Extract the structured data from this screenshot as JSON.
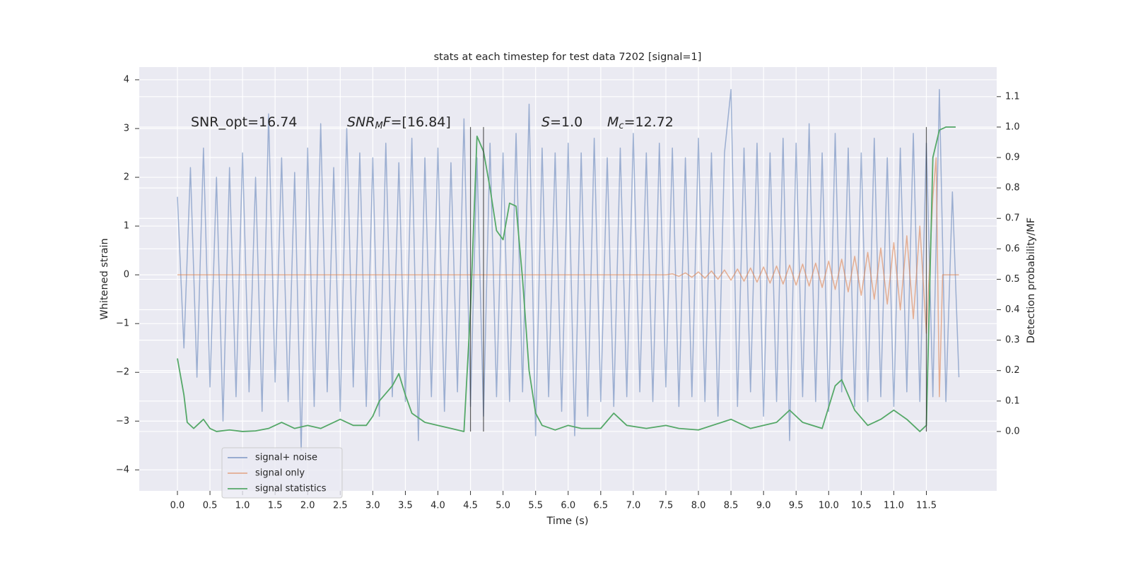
{
  "chart_data": {
    "type": "line",
    "title": "stats at each timestep for test data 7202 [signal=1]",
    "x_label": "Time (s)",
    "y_label": "Whitened strain",
    "y2_label": "Detection probability/MF",
    "xlim": [
      -0.586,
      12.58
    ],
    "ylim": [
      -4.43,
      4.26
    ],
    "y2lim": [
      -0.195,
      1.197
    ],
    "xticks": [
      {
        "value": 0,
        "label": "0.0"
      },
      0.5,
      {
        "value": 1,
        "label": "1.0"
      },
      1.5,
      {
        "value": 2,
        "label": "2.0"
      },
      2.5,
      {
        "value": 3,
        "label": "3.0"
      },
      3.5,
      {
        "value": 4,
        "label": "4.0"
      },
      4.5,
      {
        "value": 5,
        "label": "5.0"
      },
      5.5,
      {
        "value": 6,
        "label": "6.0"
      },
      6.5,
      {
        "value": 7,
        "label": "7.0"
      },
      7.5,
      {
        "value": 8,
        "label": "8.0"
      },
      8.5,
      {
        "value": 9,
        "label": "9.0"
      },
      9.5,
      {
        "value": 10,
        "label": "10.0"
      },
      10.5,
      {
        "value": 11,
        "label": "11.0"
      },
      11.5
    ],
    "yticks": [
      {
        "value": -4,
        "label": "−4"
      },
      {
        "value": -3,
        "label": "−3"
      },
      {
        "value": -2,
        "label": "−2"
      },
      {
        "value": -1,
        "label": "−1"
      },
      0,
      1,
      2,
      3,
      4
    ],
    "y2ticks": [
      {
        "value": 0,
        "label": "0.0"
      },
      0.1,
      0.2,
      0.3,
      0.4,
      0.5,
      0.6,
      0.7,
      0.8,
      0.9,
      {
        "value": 1,
        "label": "1.0"
      },
      1.1
    ],
    "grid": true,
    "legend": "lower left",
    "series": [
      {
        "name": "signal+ noise",
        "color": "#4c72b0",
        "x": [
          0,
          0.1,
          0.2,
          0.3,
          0.4,
          0.5,
          0.6,
          0.7,
          0.8,
          0.9,
          1,
          1.1,
          1.2,
          1.3,
          1.4,
          1.5,
          1.6,
          1.7,
          1.8,
          1.9,
          2,
          2.1,
          2.2,
          2.3,
          2.4,
          2.5,
          2.6,
          2.7,
          2.8,
          2.9,
          3,
          3.1,
          3.2,
          3.3,
          3.4,
          3.5,
          3.6,
          3.7,
          3.8,
          3.9,
          4,
          4.1,
          4.2,
          4.3,
          4.4,
          4.5,
          4.6,
          4.7,
          4.8,
          4.9,
          5,
          5.1,
          5.2,
          5.3,
          5.4,
          5.5,
          5.6,
          5.7,
          5.8,
          5.9,
          6,
          6.1,
          6.2,
          6.3,
          6.4,
          6.5,
          6.6,
          6.7,
          6.8,
          6.9,
          7,
          7.1,
          7.2,
          7.3,
          7.4,
          7.5,
          7.6,
          7.7,
          7.8,
          7.9,
          8,
          8.1,
          8.2,
          8.3,
          8.4,
          8.5,
          8.6,
          8.7,
          8.8,
          8.9,
          9,
          9.1,
          9.2,
          9.3,
          9.4,
          9.5,
          9.6,
          9.7,
          9.8,
          9.9,
          10,
          10.1,
          10.2,
          10.3,
          10.4,
          10.5,
          10.6,
          10.7,
          10.8,
          10.9,
          11,
          11.1,
          11.2,
          11.3,
          11.4,
          11.5,
          11.6,
          11.7,
          11.8,
          11.9,
          12
        ],
        "values": [
          1.6,
          -1.5,
          2.2,
          -2.1,
          2.6,
          -2.3,
          2.0,
          -3.0,
          2.2,
          -2.5,
          2.5,
          -2.4,
          2.0,
          -2.8,
          3.3,
          -2.2,
          2.4,
          -2.6,
          2.1,
          -3.6,
          2.6,
          -2.7,
          3.1,
          -2.4,
          2.2,
          -2.8,
          3.0,
          -2.3,
          2.5,
          -2.7,
          2.4,
          -2.9,
          2.7,
          -2.5,
          2.3,
          -2.6,
          2.8,
          -3.4,
          2.4,
          -2.5,
          2.6,
          -2.8,
          2.3,
          -2.4,
          3.2,
          -2.7,
          2.4,
          -2.9,
          2.7,
          -2.5,
          2.5,
          -2.6,
          2.9,
          -2.4,
          3.5,
          -3.3,
          2.6,
          -2.5,
          2.5,
          -2.8,
          2.7,
          -3.3,
          2.5,
          -2.9,
          2.8,
          -2.6,
          2.4,
          -2.7,
          2.6,
          -2.5,
          2.9,
          -2.4,
          2.5,
          -2.6,
          2.7,
          -2.3,
          2.6,
          -2.7,
          2.4,
          -2.5,
          2.8,
          -2.6,
          2.5,
          -2.9,
          2.5,
          3.8,
          -2.7,
          2.6,
          -2.4,
          2.7,
          -2.9,
          2.5,
          -2.6,
          2.8,
          -3.4,
          2.7,
          -2.5,
          3.1,
          -2.6,
          2.5,
          -2.8,
          2.9,
          -2.4,
          2.6,
          -2.7,
          2.5,
          -2.6,
          2.8,
          -2.5,
          2.4,
          -2.7,
          2.6,
          -2.4,
          2.9,
          -2.6,
          2.7,
          -2.5,
          3.8,
          -2.6,
          1.7,
          -2.1
        ]
      },
      {
        "name": "signal only",
        "color": "#dd8452",
        "x": [
          0,
          7.5,
          7.6,
          7.7,
          7.8,
          7.9,
          8,
          8.1,
          8.2,
          8.3,
          8.4,
          8.5,
          8.6,
          8.7,
          8.8,
          8.9,
          9,
          9.1,
          9.2,
          9.3,
          9.4,
          9.5,
          9.6,
          9.7,
          9.8,
          9.9,
          10,
          10.1,
          10.2,
          10.3,
          10.4,
          10.5,
          10.6,
          10.7,
          10.8,
          10.9,
          11,
          11.1,
          11.2,
          11.3,
          11.4,
          11.5,
          11.6,
          11.65,
          11.7,
          11.75,
          12
        ],
        "values": [
          0,
          0,
          0.02,
          -0.03,
          0.04,
          -0.05,
          0.06,
          -0.07,
          0.08,
          -0.09,
          0.1,
          -0.11,
          0.12,
          -0.13,
          0.14,
          -0.15,
          0.16,
          -0.17,
          0.18,
          -0.19,
          0.2,
          -0.21,
          0.22,
          -0.23,
          0.24,
          -0.26,
          0.28,
          -0.3,
          0.32,
          -0.35,
          0.38,
          -0.42,
          0.46,
          -0.5,
          0.55,
          -0.6,
          0.66,
          -0.72,
          0.8,
          -0.9,
          1.0,
          -1.2,
          1.6,
          2.4,
          -2.5,
          0,
          0
        ]
      },
      {
        "name": "signal statistics",
        "color": "#55a868",
        "axis": "y2",
        "x": [
          0,
          0.1,
          0.15,
          0.25,
          0.3,
          0.4,
          0.5,
          0.6,
          0.8,
          1,
          1.2,
          1.4,
          1.6,
          1.7,
          1.8,
          2,
          2.2,
          2.5,
          2.7,
          2.9,
          3,
          3.1,
          3.3,
          3.4,
          3.5,
          3.6,
          3.8,
          4,
          4.2,
          4.4,
          4.5,
          4.6,
          4.7,
          4.8,
          4.9,
          5,
          5.1,
          5.2,
          5.3,
          5.4,
          5.5,
          5.6,
          5.8,
          6,
          6.2,
          6.5,
          6.7,
          6.9,
          7.2,
          7.5,
          7.7,
          8,
          8.5,
          8.8,
          9.2,
          9.4,
          9.6,
          9.9,
          10.1,
          10.2,
          10.4,
          10.6,
          10.8,
          11,
          11.2,
          11.4,
          11.5,
          11.6,
          11.7,
          11.8,
          11.95
        ],
        "values": [
          0.24,
          0.12,
          0.03,
          0.01,
          0.02,
          0.04,
          0.01,
          0,
          0.005,
          0,
          0.002,
          0.01,
          0.03,
          0.02,
          0.01,
          0.02,
          0.01,
          0.04,
          0.02,
          0.02,
          0.05,
          0.1,
          0.15,
          0.19,
          0.12,
          0.06,
          0.03,
          0.02,
          0.01,
          0,
          0.4,
          0.97,
          0.92,
          0.8,
          0.66,
          0.63,
          0.75,
          0.74,
          0.5,
          0.2,
          0.06,
          0.02,
          0.005,
          0.02,
          0.01,
          0.01,
          0.06,
          0.02,
          0.01,
          0.02,
          0.01,
          0.005,
          0.04,
          0.01,
          0.03,
          0.07,
          0.03,
          0.01,
          0.15,
          0.17,
          0.07,
          0.02,
          0.04,
          0.07,
          0.04,
          0,
          0.02,
          0.9,
          0.99,
          1.0,
          1.0
        ]
      }
    ],
    "vlines": [
      4.5,
      4.7,
      11.5
    ],
    "vline_range": [
      0,
      1
    ],
    "annotations": [
      {
        "parts": [
          {
            "text": "SNR_opt=16.74"
          }
        ]
      },
      {
        "parts": [
          {
            "text": "SNR",
            "italic": true
          },
          {
            "text": "M",
            "italic": true,
            "sub": true
          },
          {
            "text": "F",
            "italic": true
          },
          {
            "text": "=[16.84]"
          }
        ]
      },
      {
        "parts": [
          {
            "text": "S",
            "italic": true
          },
          {
            "text": "=1.0"
          }
        ]
      },
      {
        "parts": [
          {
            "text": "M",
            "italic": true
          },
          {
            "text": "c",
            "italic": true,
            "sub": true
          },
          {
            "text": "=12.72"
          }
        ]
      }
    ]
  }
}
